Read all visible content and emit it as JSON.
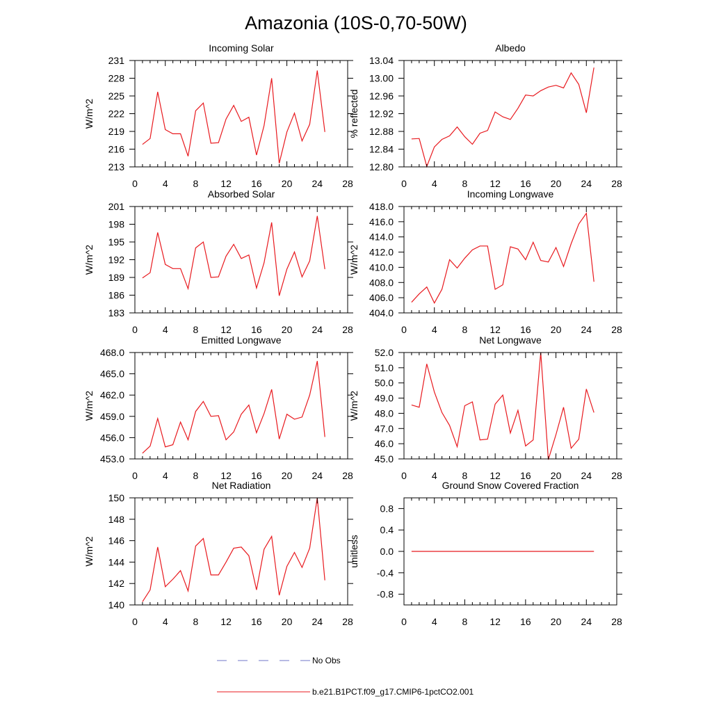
{
  "figure_title": "Amazonia (10S-0,70-50W)",
  "colors": {
    "series": "#e8191e",
    "obs": "#6f74c8",
    "axis": "#000000"
  },
  "legend": [
    {
      "label": "No Obs",
      "color": "#6f74c8",
      "style": "dashed"
    },
    {
      "label": "b.e21.B1PCT.f09_g17.CMIP6-1pctCO2.001",
      "color": "#e8191e",
      "style": "solid"
    }
  ],
  "chart_data": [
    {
      "type": "line",
      "title": "Incoming Solar",
      "ylabel": "W/m^2",
      "xlim": [
        0,
        28
      ],
      "xticks": [
        "0",
        "4",
        "8",
        "12",
        "16",
        "20",
        "24",
        "28"
      ],
      "ylim": [
        213,
        231
      ],
      "yticks": [
        "213",
        "216",
        "219",
        "222",
        "225",
        "228",
        "231"
      ],
      "x": [
        1,
        2,
        3,
        4,
        5,
        6,
        7,
        8,
        9,
        10,
        11,
        12,
        13,
        14,
        15,
        16,
        17,
        18,
        19,
        20,
        21,
        22,
        23,
        24,
        25
      ],
      "series": [
        {
          "name": "b.e21.B1PCT.f09_g17.CMIP6-1pctCO2.001",
          "values": [
            216.8,
            217.8,
            225.7,
            219.3,
            218.6,
            218.6,
            214.8,
            222.5,
            223.8,
            217.0,
            217.1,
            221.1,
            223.4,
            220.7,
            221.4,
            215.0,
            220.0,
            228.0,
            213.6,
            218.9,
            222.1,
            217.4,
            220.2,
            229.3,
            218.9
          ]
        }
      ]
    },
    {
      "type": "line",
      "title": "Albedo",
      "ylabel": "% reflected",
      "xlim": [
        0,
        28
      ],
      "xticks": [
        "0",
        "4",
        "8",
        "12",
        "16",
        "20",
        "24",
        "28"
      ],
      "ylim": [
        12.8,
        13.04
      ],
      "yticks": [
        "12.80",
        "12.84",
        "12.88",
        "12.92",
        "12.96",
        "13.00",
        "13.04"
      ],
      "x": [
        1,
        2,
        3,
        4,
        5,
        6,
        7,
        8,
        9,
        10,
        11,
        12,
        13,
        14,
        15,
        16,
        17,
        18,
        19,
        20,
        21,
        22,
        23,
        24,
        25
      ],
      "series": [
        {
          "name": "b.e21.B1PCT.f09_g17.CMIP6-1pctCO2.001",
          "values": [
            12.863,
            12.864,
            12.801,
            12.845,
            12.862,
            12.87,
            12.89,
            12.868,
            12.851,
            12.876,
            12.882,
            12.924,
            12.913,
            12.907,
            12.932,
            12.962,
            12.96,
            12.972,
            12.98,
            12.984,
            12.978,
            13.012,
            12.986,
            12.922,
            13.024
          ]
        }
      ]
    },
    {
      "type": "line",
      "title": "Absorbed Solar",
      "ylabel": "W/m^2",
      "xlim": [
        0,
        28
      ],
      "xticks": [
        "0",
        "4",
        "8",
        "12",
        "16",
        "20",
        "24",
        "28"
      ],
      "ylim": [
        183,
        201
      ],
      "yticks": [
        "183",
        "186",
        "189",
        "192",
        "195",
        "198",
        "201"
      ],
      "x": [
        1,
        2,
        3,
        4,
        5,
        6,
        7,
        8,
        9,
        10,
        11,
        12,
        13,
        14,
        15,
        16,
        17,
        18,
        19,
        20,
        21,
        22,
        23,
        24,
        25
      ],
      "series": [
        {
          "name": "b.e21.B1PCT.f09_g17.CMIP6-1pctCO2.001",
          "values": [
            188.9,
            189.8,
            196.6,
            191.2,
            190.5,
            190.5,
            187.1,
            194.0,
            195.0,
            189.0,
            189.1,
            192.6,
            194.6,
            192.2,
            192.8,
            187.2,
            191.5,
            198.3,
            185.9,
            190.4,
            193.3,
            189.1,
            191.8,
            199.4,
            190.4
          ]
        }
      ]
    },
    {
      "type": "line",
      "title": "Incoming Longwave",
      "ylabel": "W/m^2",
      "xlim": [
        0,
        28
      ],
      "xticks": [
        "0",
        "4",
        "8",
        "12",
        "16",
        "20",
        "24",
        "28"
      ],
      "ylim": [
        404.0,
        418.0
      ],
      "yticks": [
        "404.0",
        "406.0",
        "408.0",
        "410.0",
        "412.0",
        "414.0",
        "416.0",
        "418.0"
      ],
      "x": [
        1,
        2,
        3,
        4,
        5,
        6,
        7,
        8,
        9,
        10,
        11,
        12,
        13,
        14,
        15,
        16,
        17,
        18,
        19,
        20,
        21,
        22,
        23,
        24,
        25
      ],
      "series": [
        {
          "name": "b.e21.B1PCT.f09_g17.CMIP6-1pctCO2.001",
          "values": [
            405.4,
            406.5,
            407.4,
            405.3,
            407.1,
            411.0,
            409.9,
            411.2,
            412.3,
            412.8,
            412.8,
            407.1,
            407.7,
            412.7,
            412.4,
            411.0,
            413.3,
            410.9,
            410.7,
            412.6,
            410.1,
            413.1,
            415.7,
            417.1,
            408.1
          ]
        }
      ]
    },
    {
      "type": "line",
      "title": "Emitted Longwave",
      "ylabel": "W/m^2",
      "xlim": [
        0,
        28
      ],
      "xticks": [
        "0",
        "4",
        "8",
        "12",
        "16",
        "20",
        "24",
        "28"
      ],
      "ylim": [
        453.0,
        468.0
      ],
      "yticks": [
        "453.0",
        "456.0",
        "459.0",
        "462.0",
        "465.0",
        "468.0"
      ],
      "x": [
        1,
        2,
        3,
        4,
        5,
        6,
        7,
        8,
        9,
        10,
        11,
        12,
        13,
        14,
        15,
        16,
        17,
        18,
        19,
        20,
        21,
        22,
        23,
        24,
        25
      ],
      "series": [
        {
          "name": "b.e21.B1PCT.f09_g17.CMIP6-1pctCO2.001",
          "values": [
            453.8,
            454.8,
            458.7,
            454.7,
            455.0,
            458.2,
            455.7,
            459.7,
            461.1,
            459.0,
            459.1,
            455.7,
            456.8,
            459.3,
            460.6,
            456.7,
            459.4,
            462.8,
            455.8,
            459.3,
            458.6,
            458.9,
            462.0,
            466.8,
            456.1
          ]
        }
      ]
    },
    {
      "type": "line",
      "title": "Net Longwave",
      "ylabel": "W/m^2",
      "xlim": [
        0,
        28
      ],
      "xticks": [
        "0",
        "4",
        "8",
        "12",
        "16",
        "20",
        "24",
        "28"
      ],
      "ylim": [
        45.0,
        52.0
      ],
      "yticks": [
        "45.0",
        "46.0",
        "47.0",
        "48.0",
        "49.0",
        "50.0",
        "51.0",
        "52.0"
      ],
      "x": [
        1,
        2,
        3,
        4,
        5,
        6,
        7,
        8,
        9,
        10,
        11,
        12,
        13,
        14,
        15,
        16,
        17,
        18,
        19,
        20,
        21,
        22,
        23,
        24,
        25
      ],
      "series": [
        {
          "name": "b.e21.B1PCT.f09_g17.CMIP6-1pctCO2.001",
          "values": [
            48.55,
            48.4,
            51.25,
            49.4,
            48.05,
            47.2,
            45.8,
            48.5,
            48.75,
            46.25,
            46.3,
            48.6,
            49.2,
            46.7,
            48.2,
            45.85,
            46.25,
            52.0,
            44.95,
            46.6,
            48.4,
            45.7,
            46.3,
            49.6,
            48.05
          ]
        }
      ]
    },
    {
      "type": "line",
      "title": "Net Radiation",
      "ylabel": "W/m^2",
      "xlim": [
        0,
        28
      ],
      "xticks": [
        "0",
        "4",
        "8",
        "12",
        "16",
        "20",
        "24",
        "28"
      ],
      "ylim": [
        140,
        150
      ],
      "yticks": [
        "140",
        "142",
        "144",
        "146",
        "148",
        "150"
      ],
      "x": [
        1,
        2,
        3,
        4,
        5,
        6,
        7,
        8,
        9,
        10,
        11,
        12,
        13,
        14,
        15,
        16,
        17,
        18,
        19,
        20,
        21,
        22,
        23,
        24,
        25
      ],
      "series": [
        {
          "name": "b.e21.B1PCT.f09_g17.CMIP6-1pctCO2.001",
          "values": [
            140.3,
            141.4,
            145.4,
            141.7,
            142.4,
            143.2,
            141.3,
            145.5,
            146.2,
            142.8,
            142.8,
            144.0,
            145.3,
            145.4,
            144.6,
            141.4,
            145.2,
            146.4,
            140.9,
            143.6,
            144.9,
            143.5,
            145.3,
            150.0,
            142.3
          ]
        }
      ]
    },
    {
      "type": "line",
      "title": "Ground Snow Covered Fraction",
      "ylabel": "unitless",
      "xlim": [
        0,
        28
      ],
      "xticks": [
        "0",
        "4",
        "8",
        "12",
        "16",
        "20",
        "24",
        "28"
      ],
      "ylim": [
        -1.0,
        1.0
      ],
      "yticks": [
        "-0.8",
        "-0.4",
        "0.0",
        "0.4",
        "0.8"
      ],
      "x": [
        1,
        2,
        3,
        4,
        5,
        6,
        7,
        8,
        9,
        10,
        11,
        12,
        13,
        14,
        15,
        16,
        17,
        18,
        19,
        20,
        21,
        22,
        23,
        24,
        25
      ],
      "series": [
        {
          "name": "b.e21.B1PCT.f09_g17.CMIP6-1pctCO2.001",
          "values": [
            0,
            0,
            0,
            0,
            0,
            0,
            0,
            0,
            0,
            0,
            0,
            0,
            0,
            0,
            0,
            0,
            0,
            0,
            0,
            0,
            0,
            0,
            0,
            0,
            0
          ]
        }
      ]
    }
  ]
}
